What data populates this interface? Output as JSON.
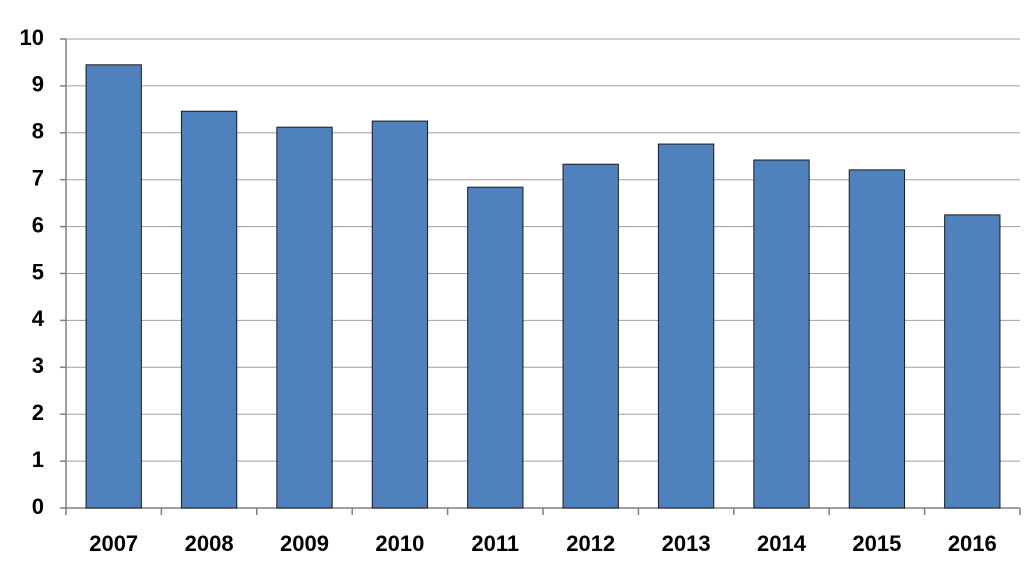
{
  "chart_data": {
    "type": "bar",
    "categories": [
      "2007",
      "2008",
      "2009",
      "2010",
      "2011",
      "2012",
      "2013",
      "2014",
      "2015",
      "2016"
    ],
    "values": [
      9.45,
      8.46,
      8.12,
      8.25,
      6.84,
      7.33,
      7.76,
      7.42,
      7.21,
      6.25
    ],
    "color": "#4f81bd",
    "ylim": [
      0,
      10
    ],
    "yticks": [
      0,
      1,
      2,
      3,
      4,
      5,
      6,
      7,
      8,
      9,
      10
    ],
    "grid": true
  }
}
